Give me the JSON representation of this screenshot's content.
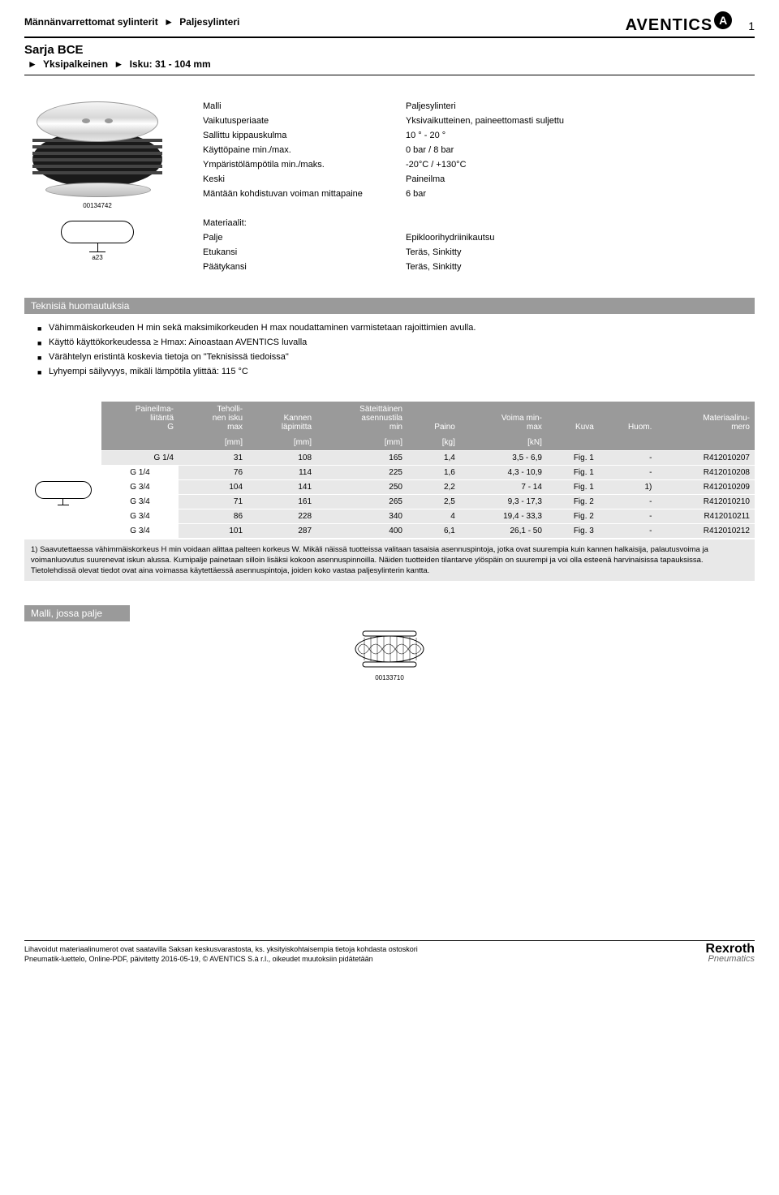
{
  "header": {
    "breadcrumb1": "Männänvarrettomat sylinterit",
    "breadcrumb2": "Paljesylinteri",
    "logo_text": "AVENTICS",
    "logo_badge": "A",
    "page_number": "1"
  },
  "series": {
    "title": "Sarja BCE",
    "sub1": "Yksipalkeinen",
    "sub2": "Isku: 31 - 104 mm"
  },
  "product_image": {
    "caption": "00134742",
    "schematic_label": "a23"
  },
  "properties": {
    "labels": {
      "malli": "Malli",
      "vaikutus": "Vaikutusperiaate",
      "sallittu": "Sallittu kippauskulma",
      "kaytto": "Käyttöpaine min./max.",
      "ymparisto": "Ympäristölämpötila min./maks.",
      "keski": "Keski",
      "mantaan": "Mäntään kohdistuvan voiman mittapaine"
    },
    "values": {
      "malli": "Paljesylinteri",
      "vaikutus": "Yksivaikutteinen, paineettomasti suljettu",
      "sallittu": "10 ° - 20 °",
      "kaytto": "0 bar / 8 bar",
      "ymparisto": "-20°C / +130°C",
      "keski": "Paineilma",
      "mantaan": "6 bar"
    }
  },
  "materials": {
    "heading": "Materiaalit:",
    "labels": {
      "palje": "Palje",
      "etukansi": "Etukansi",
      "paatykansi": "Päätykansi"
    },
    "values": {
      "palje": "Epikloorihydriinikautsu",
      "etukansi": "Teräs, Sinkitty",
      "paatykansi": "Teräs, Sinkitty"
    }
  },
  "tech_notes": {
    "heading": "Teknisiä huomautuksia",
    "items": [
      "Vähimmäiskorkeuden H min sekä maksimikorkeuden H max noudattaminen varmistetaan rajoittimien avulla.",
      "Käyttö käyttökorkeudessa ≥ Hmax: Ainoastaan AVENTICS luvalla",
      "Värähtelyn eristintä koskevia tietoja on \"Teknisissä tiedoissa\"",
      "Lyhyempi säilyvyys, mikäli lämpötila ylittää: 115 °C"
    ]
  },
  "table": {
    "headers": {
      "paineilma": "Paineilma-\nliitäntä\nG",
      "tehollinen": "Teholli-\nnen isku\nmax",
      "kannen": "Kannen\nläpimitta",
      "sateittainen": "Säteittäinen\nasennustila\nmin",
      "paino": "Paino",
      "voima": "Voima min-\nmax",
      "kuva": "Kuva",
      "huom": "Huom.",
      "materiaali": "Materiaalinu-\nmero"
    },
    "units": {
      "tehollinen": "[mm]",
      "kannen": "[mm]",
      "sateittainen": "[mm]",
      "paino": "[kg]",
      "voima": "[kN]"
    },
    "rows": [
      {
        "g": "G 1/4",
        "isku": "31",
        "kannen": "108",
        "sat": "165",
        "paino": "1,4",
        "voima": "3,5 - 6,9",
        "kuva": "Fig. 1",
        "huom": "-",
        "mat": "R412010207"
      },
      {
        "g": "G 1/4",
        "isku": "76",
        "kannen": "114",
        "sat": "225",
        "paino": "1,6",
        "voima": "4,3 - 10,9",
        "kuva": "Fig. 1",
        "huom": "-",
        "mat": "R412010208"
      },
      {
        "g": "G 3/4",
        "isku": "104",
        "kannen": "141",
        "sat": "250",
        "paino": "2,2",
        "voima": "7 - 14",
        "kuva": "Fig. 1",
        "huom": "1)",
        "mat": "R412010209"
      },
      {
        "g": "G 3/4",
        "isku": "71",
        "kannen": "161",
        "sat": "265",
        "paino": "2,5",
        "voima": "9,3 - 17,3",
        "kuva": "Fig. 2",
        "huom": "-",
        "mat": "R412010210"
      },
      {
        "g": "G 3/4",
        "isku": "86",
        "kannen": "228",
        "sat": "340",
        "paino": "4",
        "voima": "19,4 - 33,3",
        "kuva": "Fig. 2",
        "huom": "-",
        "mat": "R412010211"
      },
      {
        "g": "G 3/4",
        "isku": "101",
        "kannen": "287",
        "sat": "400",
        "paino": "6,1",
        "voima": "26,1 - 50",
        "kuva": "Fig. 3",
        "huom": "-",
        "mat": "R412010212"
      }
    ],
    "footnote": "1) Saavutettaessa vähimmäiskorkeus H min voidaan alittaa palteen korkeus W. Mikäli näissä tuotteissa valitaan tasaisia asennuspintoja, jotka ovat suurempia kuin kannen halkaisija, palautusvoima ja voimanluovutus suurenevat iskun alussa. Kumipalje painetaan silloin lisäksi kokoon asennuspinnoilla. Näiden tuotteiden tilantarve ylöspäin on suurempi ja voi olla esteenä harvinaisissa tapauksissa. Tietolehdissä olevat tiedot ovat aina voimassa käytettäessä asennuspintoja, joiden koko vastaa paljesylinterin kantta."
  },
  "model": {
    "heading": "Malli, jossa palje",
    "caption": "00133710"
  },
  "footer": {
    "line1": "Lihavoidut materiaalinumerot ovat saatavilla Saksan keskusvarastosta, ks. yksityiskohtaisempia tietoja kohdasta ostoskori",
    "line2": "Pneumatik-luettelo, Online-PDF, päivitetty 2016-05-19, © AVENTICS S.à r.l., oikeudet muutoksiin pidätetään",
    "logo": "Rexroth",
    "logo_sub": "Pneumatics"
  },
  "colors": {
    "section_bar": "#9a9a9a",
    "table_cell": "#e8e8e8"
  }
}
